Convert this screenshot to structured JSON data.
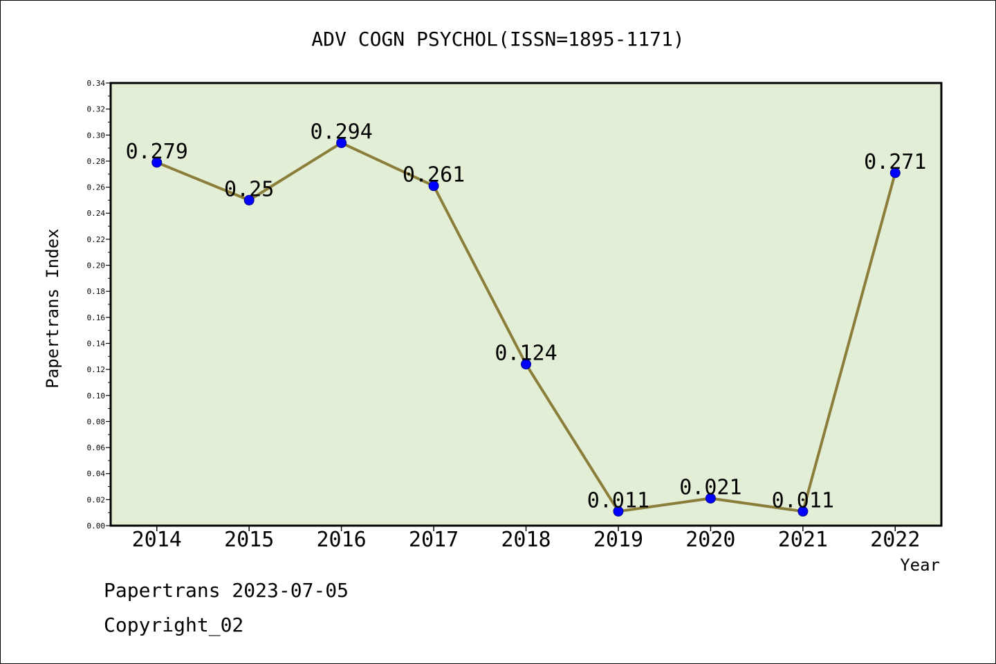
{
  "chart_data": {
    "type": "line",
    "title": "ADV COGN PSYCHOL(ISSN=1895-1171)",
    "xlabel": "Year",
    "ylabel": "Papertrans Index",
    "categories": [
      "2014",
      "2015",
      "2016",
      "2017",
      "2018",
      "2019",
      "2020",
      "2021",
      "2022"
    ],
    "values": [
      0.279,
      0.25,
      0.294,
      0.261,
      0.124,
      0.011,
      0.021,
      0.011,
      0.271
    ],
    "data_labels": [
      "0.279",
      "0.25",
      "0.294",
      "0.261",
      "0.124",
      "0.011",
      "0.021",
      "0.011",
      "0.271"
    ],
    "ylim": [
      0,
      0.34
    ],
    "yticks": [
      "0.00",
      "0.02",
      "0.04",
      "0.06",
      "0.08",
      "0.10",
      "0.12",
      "0.14",
      "0.16",
      "0.18",
      "0.20",
      "0.22",
      "0.24",
      "0.26",
      "0.28",
      "0.30",
      "0.32",
      "0.34"
    ],
    "grid": false,
    "legend": "none",
    "colors": {
      "plot_background": "#e2efd6",
      "line": "#8b7d3a",
      "marker": "#0000ff"
    }
  },
  "footer": {
    "line1": "Papertrans 2023-07-05",
    "line2": "Copyright_02"
  }
}
